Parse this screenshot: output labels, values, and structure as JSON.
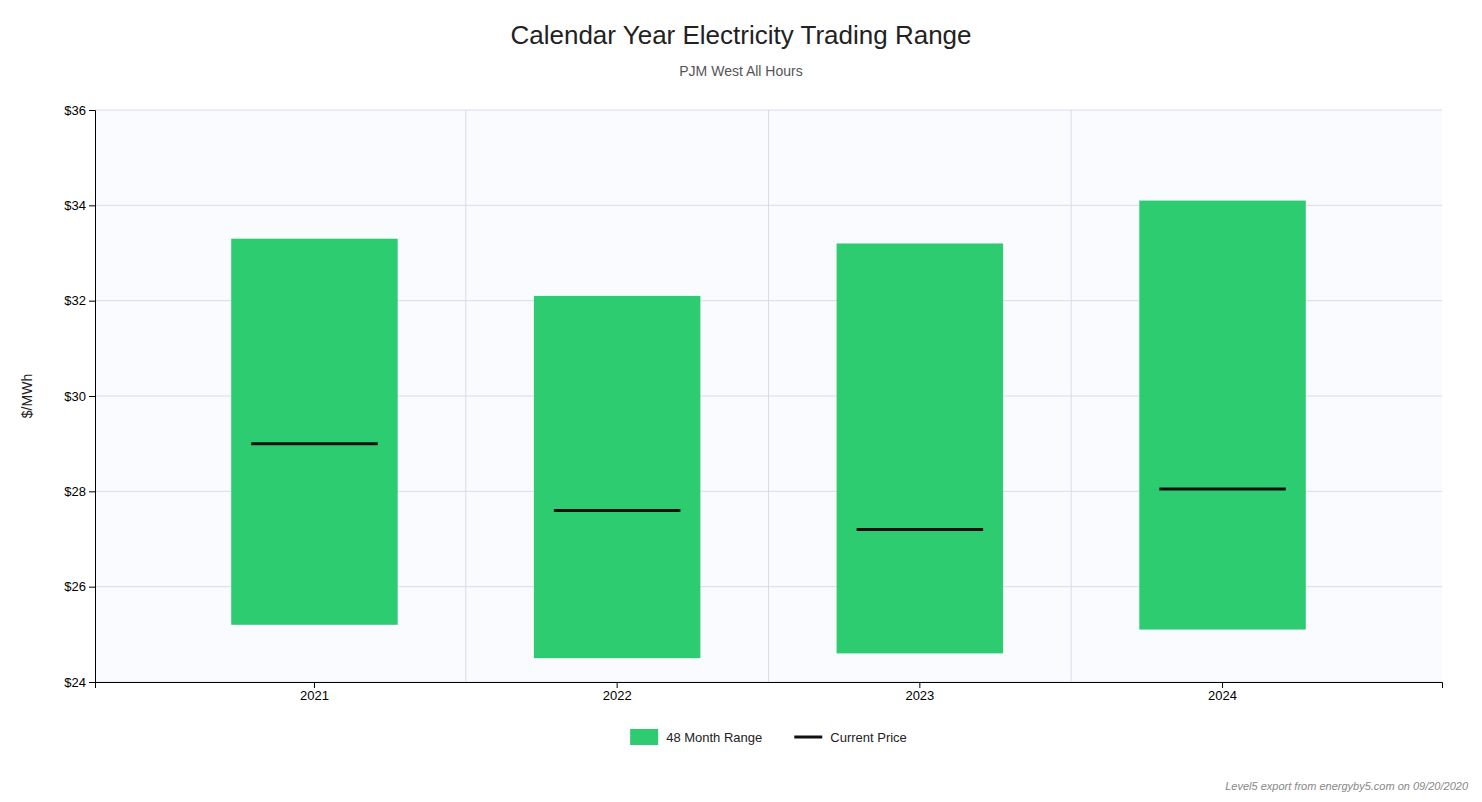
{
  "chart_data": {
    "type": "bar",
    "title": "Calendar Year Electricity Trading Range",
    "subtitle": "PJM West All Hours",
    "y_label": "$/MWh",
    "categories": [
      "2021",
      "2022",
      "2023",
      "2024"
    ],
    "series": [
      {
        "name": "48 Month Range",
        "type": "bar",
        "color": "#2ECC71",
        "low": [
          25.2,
          24.5,
          24.6,
          25.1
        ],
        "values": [
          33.3,
          32.1,
          33.2,
          34.1
        ]
      },
      {
        "name": "Current Price",
        "type": "scatter",
        "marker": "dash",
        "color": "#111111",
        "values": [
          29.0,
          27.6,
          27.2,
          28.05
        ]
      }
    ],
    "ylim": [
      24,
      36
    ],
    "yticks": [
      {
        "value": 24,
        "label": "$24"
      },
      {
        "value": 26,
        "label": "$26"
      },
      {
        "value": 28,
        "label": "$28"
      },
      {
        "value": 30,
        "label": "$30"
      },
      {
        "value": 32,
        "label": "$32"
      },
      {
        "value": 34,
        "label": "$34"
      },
      {
        "value": 36,
        "label": "$36"
      }
    ],
    "grid": true,
    "legend": "bottom",
    "annotations": [
      "Level5 export from energyby5.com on 09/20/2020"
    ]
  }
}
